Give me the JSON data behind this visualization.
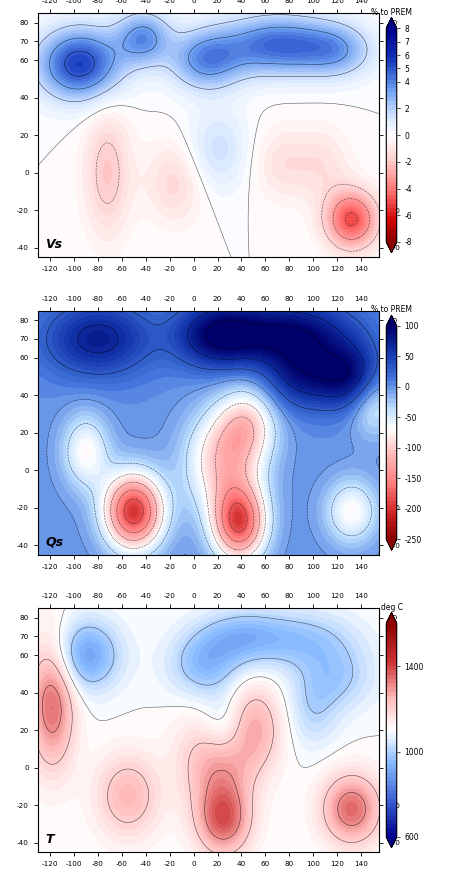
{
  "panel1": {
    "label": "Vs",
    "colorbar_label": "% to PREM",
    "vmin": -8,
    "vmax": 8,
    "cb_ticks": [
      -8,
      -6,
      -4,
      -2,
      0,
      2,
      4,
      5,
      6,
      7,
      8
    ],
    "cb_labels": [
      "-8",
      "-6",
      "-4",
      "-2",
      "0",
      "2",
      "4",
      "5",
      "6",
      "7",
      "8"
    ]
  },
  "panel2": {
    "label": "Qs",
    "colorbar_label": "% to PREM",
    "vmin": -250,
    "vmax": 100,
    "cb_ticks": [
      -250,
      -200,
      -150,
      -100,
      -50,
      0,
      50,
      100
    ],
    "cb_labels": [
      "-250",
      "-200",
      "-150",
      "-100",
      "-50",
      "0",
      "50",
      "100"
    ]
  },
  "panel3": {
    "label": "T",
    "colorbar_label": "deg C",
    "vmin": 600,
    "vmax": 1600,
    "cb_ticks": [
      600,
      1000,
      1400
    ],
    "cb_labels": [
      "600",
      "1000",
      "1400"
    ]
  },
  "lon_ticks": [
    -120,
    -100,
    -80,
    -60,
    -40,
    -20,
    0,
    20,
    40,
    60,
    80,
    100,
    120,
    140
  ],
  "lat_ticks": [
    -40,
    -20,
    0,
    20,
    40,
    60,
    70,
    80
  ],
  "lon_range": [
    -130,
    155
  ],
  "lat_range": [
    -45,
    85
  ],
  "figsize": [
    4.74,
    8.83
  ],
  "dpi": 100
}
